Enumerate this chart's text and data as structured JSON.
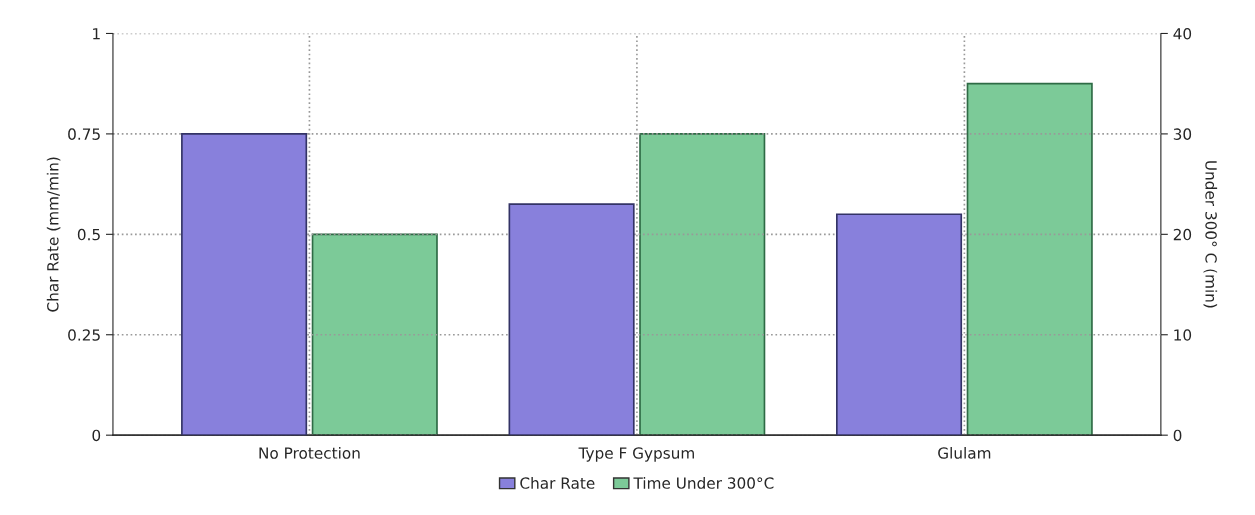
{
  "chart_data": {
    "type": "bar",
    "categories": [
      "No Protection",
      "Type F Gypsum",
      "Glulam"
    ],
    "series": [
      {
        "name": "Char Rate",
        "color": "#8880dc",
        "values": [
          0.75,
          0.575,
          0.55
        ]
      },
      {
        "name": "Time Under 300°C",
        "color": "#7cca98",
        "values": [
          20,
          30,
          35
        ],
        "axis": "y2"
      }
    ],
    "ylabel": "Char Rate (mm/min)",
    "y2label": "Under 300° C (min)",
    "ylim": [
      0,
      1
    ],
    "yticks": [
      0,
      0.25,
      0.5,
      0.75,
      1
    ],
    "y2lim": [
      0,
      40
    ],
    "y2ticks": [
      0,
      10,
      20,
      30,
      40
    ],
    "grid": true,
    "legend": "bottom"
  }
}
